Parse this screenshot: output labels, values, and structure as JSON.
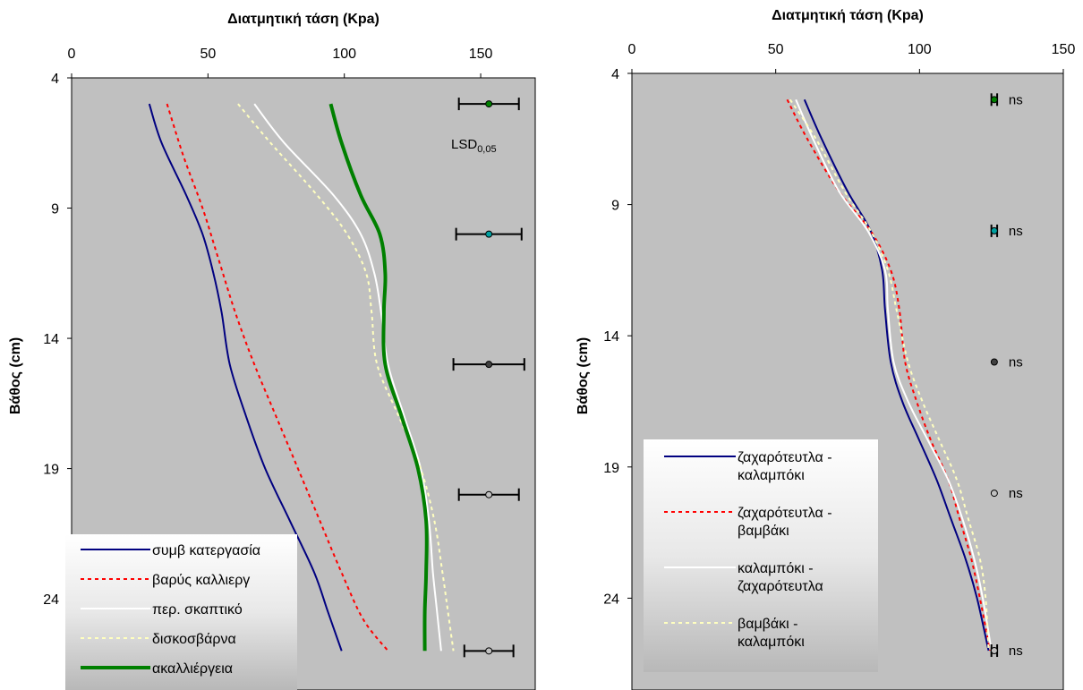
{
  "chart_data": [
    {
      "type": "line",
      "title": "Διατμητική τάση (Kpa)",
      "xlabel": "Διατμητική τάση (Kpa)",
      "ylabel": "Βάθος (cm)",
      "xlim": [
        0,
        170
      ],
      "ylim": [
        4,
        27.5
      ],
      "y_inverted": true,
      "x_axis_position": "top",
      "xticks": [
        "0",
        "50",
        "100",
        "150"
      ],
      "yticks": [
        "4",
        "9",
        "14",
        "19",
        "24"
      ],
      "grid": false,
      "legend_position": "bottom-left",
      "series": [
        {
          "name": "συμβ κατεργασία",
          "color": "#000080",
          "style": "solid",
          "width": 2,
          "points": [
            [
              28.5,
              5
            ],
            [
              33,
              6.5
            ],
            [
              42,
              8.5
            ],
            [
              48,
              10
            ],
            [
              52,
              11.5
            ],
            [
              55,
              13
            ],
            [
              58,
              15
            ],
            [
              64,
              17
            ],
            [
              71,
              19
            ],
            [
              80,
              21
            ],
            [
              89,
              23
            ],
            [
              94,
              24.5
            ],
            [
              99,
              26
            ]
          ]
        },
        {
          "name": "βαρύς καλλιεργ",
          "color": "#ff0000",
          "style": "dashed",
          "width": 2,
          "points": [
            [
              35,
              5
            ],
            [
              41,
              7
            ],
            [
              48,
              9
            ],
            [
              54,
              11
            ],
            [
              60,
              13
            ],
            [
              67,
              15
            ],
            [
              75,
              17
            ],
            [
              83,
              19
            ],
            [
              91,
              21
            ],
            [
              99,
              23
            ],
            [
              107,
              24.8
            ],
            [
              116,
              26
            ]
          ]
        },
        {
          "name": "περ. σκαπτικό",
          "color": "#ffffff",
          "style": "solid",
          "width": 2,
          "points": [
            [
              67,
              5
            ],
            [
              78,
              6.5
            ],
            [
              96,
              8.5
            ],
            [
              106,
              10
            ],
            [
              111,
              11.5
            ],
            [
              113.5,
              13
            ],
            [
              116,
              15
            ],
            [
              122,
              17
            ],
            [
              128,
              19
            ],
            [
              131,
              21
            ],
            [
              132.5,
              23
            ],
            [
              134,
              24.5
            ],
            [
              135.5,
              26
            ]
          ]
        },
        {
          "name": "δισκοσβάρνα",
          "color": "#ffffc0",
          "style": "dashed",
          "width": 2,
          "points": [
            [
              61,
              5
            ],
            [
              73,
              6.5
            ],
            [
              90,
              8.5
            ],
            [
              101,
              10
            ],
            [
              108,
              11.5
            ],
            [
              110,
              13
            ],
            [
              112,
              15
            ],
            [
              120,
              17
            ],
            [
              128,
              19
            ],
            [
              133,
              21
            ],
            [
              136,
              23
            ],
            [
              138,
              24.5
            ],
            [
              140,
              26
            ]
          ]
        },
        {
          "name": "ακαλλιέργεια",
          "color": "#008000",
          "style": "solid",
          "width": 4,
          "points": [
            [
              95,
              5
            ],
            [
              99,
              6.5
            ],
            [
              106,
              8.5
            ],
            [
              113,
              10
            ],
            [
              115,
              11.5
            ],
            [
              114.5,
              13
            ],
            [
              115,
              15
            ],
            [
              121,
              17
            ],
            [
              127,
              19
            ],
            [
              130,
              21
            ],
            [
              130,
              23
            ],
            [
              129.5,
              24.5
            ],
            [
              129.5,
              26
            ]
          ]
        }
      ],
      "error_bars": [
        {
          "y": 5,
          "x": 153,
          "low": 142,
          "high": 164,
          "marker_color": "#008000"
        },
        {
          "y": 10,
          "x": 153,
          "low": 141,
          "high": 165,
          "marker_color": "#00a0a0"
        },
        {
          "y": 15,
          "x": 153,
          "low": 140,
          "high": 166,
          "marker_color": "#404040"
        },
        {
          "y": 20,
          "x": 153,
          "low": 142,
          "high": 164,
          "marker_color": "#000000"
        },
        {
          "y": 26,
          "x": 153,
          "low": 144,
          "high": 162,
          "marker_color": "#000000"
        }
      ],
      "annotation": {
        "text": "LSD",
        "subscript": "0,05"
      }
    },
    {
      "type": "line",
      "title": "Διατμητική τάση (Kpa)",
      "xlabel": "Διατμητική τάση (Kpa)",
      "ylabel": "Βάθος (cm)",
      "xlim": [
        0,
        150
      ],
      "ylim": [
        4,
        27.5
      ],
      "y_inverted": true,
      "x_axis_position": "top",
      "xticks": [
        "0",
        "50",
        "100",
        "150"
      ],
      "yticks": [
        "4",
        "9",
        "14",
        "19",
        "24"
      ],
      "grid": false,
      "legend_position": "bottom-left",
      "series": [
        {
          "name": "ζαχαρότευτλα - καλαμπόκι",
          "color": "#000080",
          "style": "solid",
          "width": 2,
          "points": [
            [
              60,
              5
            ],
            [
              66,
              6.5
            ],
            [
              75,
              8.5
            ],
            [
              83,
              10
            ],
            [
              87,
              11.5
            ],
            [
              88,
              13
            ],
            [
              90,
              15
            ],
            [
              94,
              16.5
            ],
            [
              100,
              18
            ],
            [
              106,
              19.5
            ],
            [
              111,
              21
            ],
            [
              116,
              22.5
            ],
            [
              120,
              24
            ],
            [
              124,
              26
            ]
          ]
        },
        {
          "name": "ζαχαρότευτλα - βαμβάκι",
          "color": "#ff0000",
          "style": "dashed",
          "width": 2,
          "points": [
            [
              54,
              5
            ],
            [
              61,
              6.5
            ],
            [
              72,
              8.5
            ],
            [
              83,
              10
            ],
            [
              90,
              11.5
            ],
            [
              93,
              13
            ],
            [
              95,
              15
            ],
            [
              99,
              16.5
            ],
            [
              104,
              18
            ],
            [
              110,
              19.5
            ],
            [
              114,
              21
            ],
            [
              118,
              22.5
            ],
            [
              121,
              24
            ],
            [
              124.5,
              26
            ]
          ]
        },
        {
          "name": "καλαμπόκι - ζαχαρότευτλα",
          "color": "#ffffff",
          "style": "solid",
          "width": 2,
          "points": [
            [
              57,
              5
            ],
            [
              63,
              6.5
            ],
            [
              72,
              8.5
            ],
            [
              82,
              10
            ],
            [
              88,
              11.5
            ],
            [
              89,
              13
            ],
            [
              91,
              15
            ],
            [
              96,
              16.5
            ],
            [
              103,
              18
            ],
            [
              110,
              19.5
            ],
            [
              115,
              21
            ],
            [
              119,
              22.5
            ],
            [
              122,
              24
            ],
            [
              125,
              26
            ]
          ]
        },
        {
          "name": "βαμβάκι - καλαμπόκι",
          "color": "#ffffc0",
          "style": "dashed",
          "width": 2,
          "points": [
            [
              55,
              5
            ],
            [
              64,
              6.5
            ],
            [
              74,
              8.5
            ],
            [
              83,
              10
            ],
            [
              89,
              11.5
            ],
            [
              92,
              13
            ],
            [
              96,
              15
            ],
            [
              101,
              16.5
            ],
            [
              107,
              18
            ],
            [
              113,
              19.5
            ],
            [
              117,
              21
            ],
            [
              121,
              22.5
            ],
            [
              123,
              24
            ],
            [
              124,
              26
            ]
          ]
        }
      ],
      "error_bars": [
        {
          "y": 5,
          "x": 126,
          "low": 125,
          "high": 127,
          "marker_color": "#008000",
          "label": "ns"
        },
        {
          "y": 10,
          "x": 126,
          "low": 125,
          "high": 127,
          "marker_color": "#00a0a0",
          "label": "ns"
        },
        {
          "y": 15,
          "x": 126,
          "low": 126,
          "high": 126,
          "marker_color": "#404040",
          "label": "ns"
        },
        {
          "y": 20,
          "x": 126,
          "low": 126,
          "high": 126,
          "marker_color": "#000000",
          "label": "ns"
        },
        {
          "y": 26,
          "x": 126,
          "low": 125,
          "high": 127,
          "marker_color": "#000000",
          "label": "ns"
        }
      ]
    }
  ]
}
